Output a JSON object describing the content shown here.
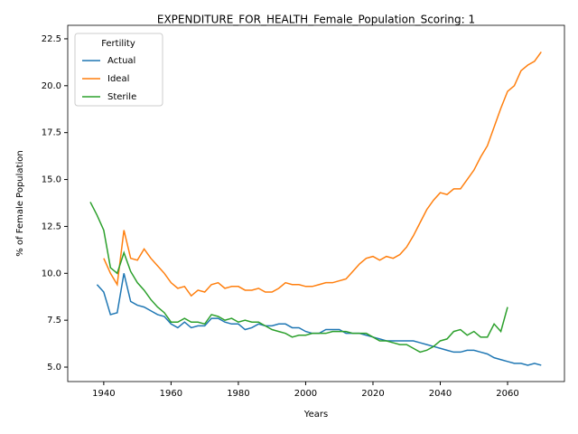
{
  "chart_data": {
    "type": "line",
    "title": "EXPENDITURE_FOR_HEALTH_Female_Population_Scoring: 1",
    "x_label": "Years",
    "y_label": "% of Female Population",
    "legend_title": "Fertility",
    "legend": "upper left",
    "x": [
      1936,
      1938,
      1940,
      1942,
      1944,
      1946,
      1948,
      1950,
      1952,
      1954,
      1956,
      1958,
      1960,
      1962,
      1964,
      1966,
      1968,
      1970,
      1972,
      1974,
      1976,
      1978,
      1980,
      1982,
      1984,
      1986,
      1988,
      1990,
      1992,
      1994,
      1996,
      1998,
      2000,
      2002,
      2004,
      2006,
      2008,
      2010,
      2012,
      2014,
      2016,
      2018,
      2020,
      2022,
      2024,
      2026,
      2028,
      2030,
      2032,
      2034,
      2036,
      2038,
      2040,
      2042,
      2044,
      2046,
      2048,
      2050,
      2052,
      2054,
      2056,
      2058,
      2060,
      2062,
      2064,
      2066,
      2068,
      2070
    ],
    "series": [
      {
        "name": "Actual",
        "color": "#1f77b4",
        "values": [
          null,
          9.4,
          9.0,
          7.8,
          7.9,
          10.0,
          8.5,
          8.3,
          8.2,
          8.0,
          7.8,
          7.7,
          7.3,
          7.1,
          7.4,
          7.1,
          7.2,
          7.2,
          7.6,
          7.6,
          7.4,
          7.3,
          7.3,
          7.0,
          7.1,
          7.3,
          7.2,
          7.2,
          7.3,
          7.3,
          7.1,
          7.1,
          6.9,
          6.8,
          6.8,
          7.0,
          7.0,
          7.0,
          6.8,
          6.8,
          6.8,
          6.7,
          6.6,
          6.5,
          6.4,
          6.4,
          6.4,
          6.4,
          6.4,
          6.3,
          6.2,
          6.1,
          6.0,
          5.9,
          5.8,
          5.8,
          5.9,
          5.9,
          5.8,
          5.7,
          5.5,
          5.4,
          5.3,
          5.2,
          5.2,
          5.1,
          5.2,
          5.1
        ]
      },
      {
        "name": "Ideal",
        "color": "#ff7f0e",
        "values": [
          null,
          null,
          10.8,
          10.0,
          9.4,
          12.3,
          10.8,
          10.7,
          11.3,
          10.8,
          10.4,
          10.0,
          9.5,
          9.2,
          9.3,
          8.8,
          9.1,
          9.0,
          9.4,
          9.5,
          9.2,
          9.3,
          9.3,
          9.1,
          9.1,
          9.2,
          9.0,
          9.0,
          9.2,
          9.5,
          9.4,
          9.4,
          9.3,
          9.3,
          9.4,
          9.5,
          9.5,
          9.6,
          9.7,
          10.1,
          10.5,
          10.8,
          10.9,
          10.7,
          10.9,
          10.8,
          11.0,
          11.4,
          12.0,
          12.7,
          13.4,
          13.9,
          14.3,
          14.2,
          14.5,
          14.5,
          15.0,
          15.5,
          16.2,
          16.8,
          17.8,
          18.8,
          19.7,
          20.0,
          20.8,
          21.1,
          21.3,
          21.8
        ]
      },
      {
        "name": "Sterile",
        "color": "#2ca02c",
        "values": [
          13.8,
          13.1,
          12.3,
          10.3,
          10.0,
          11.1,
          10.1,
          9.5,
          9.1,
          8.6,
          8.2,
          7.9,
          7.4,
          7.4,
          7.6,
          7.4,
          7.4,
          7.3,
          7.8,
          7.7,
          7.5,
          7.6,
          7.4,
          7.5,
          7.4,
          7.4,
          7.2,
          7.0,
          6.9,
          6.8,
          6.6,
          6.7,
          6.7,
          6.8,
          6.8,
          6.8,
          6.9,
          6.9,
          6.9,
          6.8,
          6.8,
          6.8,
          6.6,
          6.4,
          6.4,
          6.3,
          6.2,
          6.2,
          6.0,
          5.8,
          5.9,
          6.1,
          6.4,
          6.5,
          6.9,
          7.0,
          6.7,
          6.9,
          6.6,
          6.6,
          7.3,
          6.9,
          8.2,
          null,
          null,
          null,
          null,
          null
        ]
      }
    ],
    "xlim": [
      1929.3,
      2076.9
    ],
    "xticks": [
      1940,
      1960,
      1980,
      2000,
      2020,
      2040,
      2060
    ],
    "ylim": [
      4.23,
      23.22
    ],
    "yticks": [
      {
        "value": 5.0,
        "label": "5.0"
      },
      {
        "value": 7.5,
        "label": "7.5"
      },
      {
        "value": 10.0,
        "label": "10.0"
      },
      {
        "value": 12.5,
        "label": "12.5"
      },
      {
        "value": 15.0,
        "label": "15.0"
      },
      {
        "value": 17.5,
        "label": "17.5"
      },
      {
        "value": 20.0,
        "label": "20.0"
      },
      {
        "value": 22.5,
        "label": "22.5"
      }
    ],
    "grid": false
  }
}
